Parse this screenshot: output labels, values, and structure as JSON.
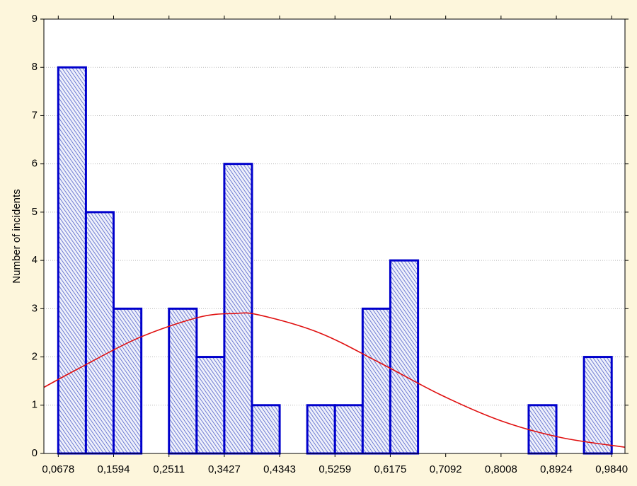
{
  "chart_data": {
    "type": "histogram",
    "y_label": "Number of incidents",
    "bins": [
      0.0678,
      0.1136,
      0.1594,
      0.2053,
      0.2511,
      0.2969,
      0.3427,
      0.3885,
      0.4343,
      0.4801,
      0.5259,
      0.5717,
      0.6175,
      0.6634,
      0.7092,
      0.755,
      0.8008,
      0.8466,
      0.8924,
      0.9382,
      0.984
    ],
    "values": [
      8,
      5,
      3,
      0,
      3,
      2,
      6,
      1,
      0,
      1,
      1,
      3,
      4,
      0,
      0,
      0,
      0,
      1,
      0,
      2
    ],
    "color": "#0000cc",
    "fit_curve": {
      "color": "#e01010",
      "x": [
        0.044,
        0.1,
        0.2,
        0.3,
        0.36,
        0.4,
        0.5,
        0.6,
        0.7,
        0.8,
        0.9,
        1.006
      ],
      "values": [
        1.37,
        1.75,
        2.39,
        2.82,
        2.9,
        2.87,
        2.5,
        1.88,
        1.22,
        0.68,
        0.33,
        0.13
      ]
    },
    "xlim": [
      0.044,
      1.006
    ],
    "ylim": [
      0,
      9
    ],
    "xticks": [
      {
        "value": 0.0678,
        "label": "0,0678"
      },
      {
        "value": 0.1594,
        "label": "0,1594"
      },
      {
        "value": 0.2511,
        "label": "0,2511"
      },
      {
        "value": 0.3427,
        "label": "0,3427"
      },
      {
        "value": 0.4343,
        "label": "0,4343"
      },
      {
        "value": 0.5259,
        "label": "0,5259"
      },
      {
        "value": 0.6175,
        "label": "0,6175"
      },
      {
        "value": 0.7092,
        "label": "0,7092"
      },
      {
        "value": 0.8008,
        "label": "0,8008"
      },
      {
        "value": 0.8924,
        "label": "0,8924"
      },
      {
        "value": 0.984,
        "label": "0,9840"
      }
    ],
    "yticks": [
      0,
      1,
      2,
      3,
      4,
      5,
      6,
      7,
      8,
      9
    ],
    "grid": true
  }
}
